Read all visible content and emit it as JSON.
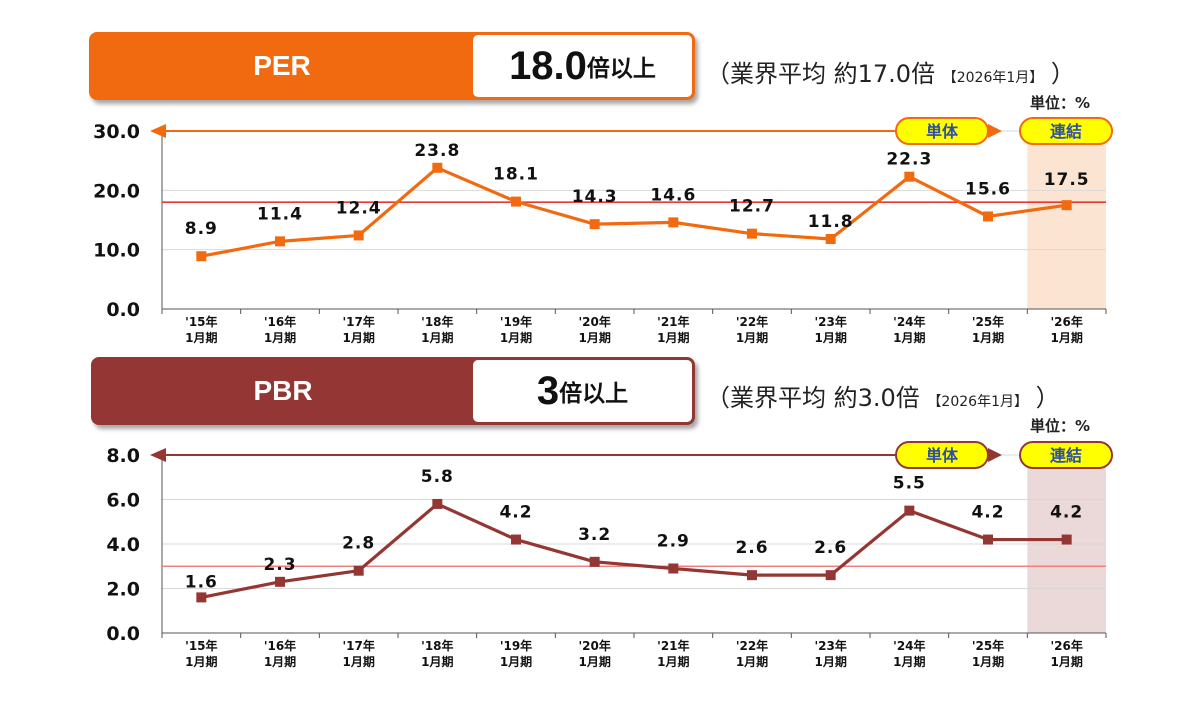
{
  "per": {
    "label": "PER",
    "target_value": "18.0",
    "target_suffix": "倍以上",
    "avg_prefix": "（業界平均  約17.0倍",
    "avg_date": "【2026年1月】",
    "avg_suffix": "）",
    "unit": "単位：%",
    "badge_single": "単体",
    "badge_consolidated": "連結",
    "color": "#F26A0F",
    "ref_color": "#E53935",
    "highlight_color": "#FCE4D3"
  },
  "pbr": {
    "label": "PBR",
    "target_value": "3",
    "target_suffix": "倍以上",
    "avg_prefix": "（業界平均  約3.0倍",
    "avg_date": "【2026年1月】",
    "avg_suffix": "）",
    "unit": "単位：%",
    "badge_single": "単体",
    "badge_consolidated": "連結",
    "color": "#943634",
    "ref_color": "#F08080",
    "highlight_color": "#EBD8D8"
  },
  "chart_data": [
    {
      "type": "line",
      "categories": [
        "'15年\n1月期",
        "'16年\n1月期",
        "'17年\n1月期",
        "'18年\n1月期",
        "'19年\n1月期",
        "'20年\n1月期",
        "'21年\n1月期",
        "'22年\n1月期",
        "'23年\n1月期",
        "'24年\n1月期",
        "'25年\n1月期",
        "'26年\n1月期"
      ],
      "values": [
        8.9,
        11.4,
        12.4,
        23.8,
        18.1,
        14.3,
        14.6,
        12.7,
        11.8,
        22.3,
        15.6,
        17.5
      ],
      "labels": [
        "8.9",
        "11.4",
        "12.4",
        "23.8",
        "18.1",
        "14.3",
        "14.6",
        "12.7",
        "11.8",
        "22.3",
        "15.6",
        "17.5"
      ],
      "yticks": [
        "30.0",
        "20.0",
        "10.0",
        "0.0"
      ],
      "ylim": [
        0,
        30
      ],
      "reference_line": 18.0,
      "highlight_category": "'26年\n1月期",
      "grid": true
    },
    {
      "type": "line",
      "categories": [
        "'15年\n1月期",
        "'16年\n1月期",
        "'17年\n1月期",
        "'18年\n1月期",
        "'19年\n1月期",
        "'20年\n1月期",
        "'21年\n1月期",
        "'22年\n1月期",
        "'23年\n1月期",
        "'24年\n1月期",
        "'25年\n1月期",
        "'26年\n1月期"
      ],
      "values": [
        1.6,
        2.3,
        2.8,
        5.8,
        4.2,
        3.2,
        2.9,
        2.6,
        2.6,
        5.5,
        4.2,
        4.2
      ],
      "labels": [
        "1.6",
        "2.3",
        "2.8",
        "5.8",
        "4.2",
        "3.2",
        "2.9",
        "2.6",
        "2.6",
        "5.5",
        "4.2",
        "4.2"
      ],
      "yticks": [
        "8.0",
        "6.0",
        "4.0",
        "2.0",
        "0.0"
      ],
      "ylim": [
        0,
        8
      ],
      "reference_line": 3.0,
      "highlight_category": "'26年\n1月期",
      "grid": true
    }
  ]
}
